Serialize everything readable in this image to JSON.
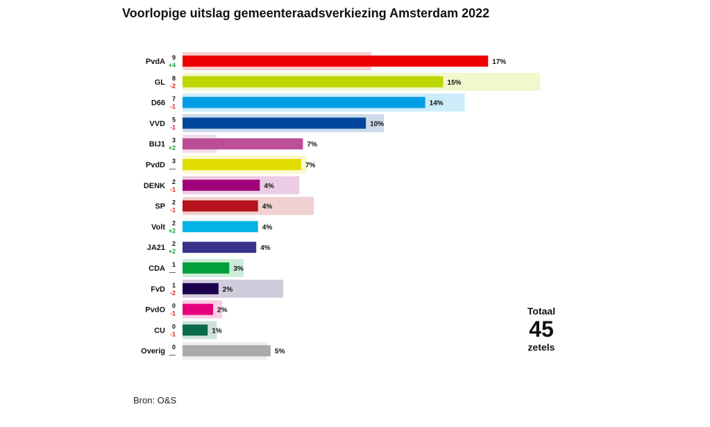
{
  "chart_data": {
    "type": "bar",
    "title": "Voorlopige uitslag gemeenteraadsverkiezing Amsterdam 2022",
    "source": "Bron: O&S",
    "total": {
      "label_top": "Totaal",
      "value": "45",
      "label_bottom": "zetels"
    },
    "xlim": [
      0,
      21
    ],
    "unit": "%",
    "parties": [
      {
        "name": "PvdA",
        "seats": "9",
        "change": "+4",
        "pct": 17.0,
        "pct_label": "17%",
        "prev_pct": 10.5,
        "color": "#ee0000"
      },
      {
        "name": "GL",
        "seats": "8",
        "change": "-2",
        "pct": 14.5,
        "pct_label": "15%",
        "prev_pct": 19.9,
        "color": "#bed600"
      },
      {
        "name": "D66",
        "seats": "7",
        "change": "-1",
        "pct": 13.5,
        "pct_label": "14%",
        "prev_pct": 15.7,
        "color": "#009fe3"
      },
      {
        "name": "VVD",
        "seats": "5",
        "change": "-1",
        "pct": 10.2,
        "pct_label": "10%",
        "prev_pct": 11.2,
        "color": "#00479b"
      },
      {
        "name": "BIJ1",
        "seats": "3",
        "change": "+2",
        "pct": 6.7,
        "pct_label": "7%",
        "prev_pct": 1.9,
        "color": "#bb4e97"
      },
      {
        "name": "PvdD",
        "seats": "3",
        "change": "—",
        "pct": 6.6,
        "pct_label": "7%",
        "prev_pct": 6.9,
        "color": "#e1dc00"
      },
      {
        "name": "DENK",
        "seats": "2",
        "change": "-1",
        "pct": 4.3,
        "pct_label": "4%",
        "prev_pct": 6.5,
        "color": "#a0007a"
      },
      {
        "name": "SP",
        "seats": "2",
        "change": "-1",
        "pct": 4.2,
        "pct_label": "4%",
        "prev_pct": 7.3,
        "color": "#b5121b"
      },
      {
        "name": "Volt",
        "seats": "2",
        "change": "+2",
        "pct": 4.2,
        "pct_label": "4%",
        "prev_pct": 0,
        "color": "#00b2e6"
      },
      {
        "name": "JA21",
        "seats": "2",
        "change": "+2",
        "pct": 4.1,
        "pct_label": "4%",
        "prev_pct": 0,
        "color": "#38328a"
      },
      {
        "name": "CDA",
        "seats": "1",
        "change": "—",
        "pct": 2.6,
        "pct_label": "3%",
        "prev_pct": 3.4,
        "color": "#00a13c"
      },
      {
        "name": "FvD",
        "seats": "1",
        "change": "-2",
        "pct": 2.0,
        "pct_label": "2%",
        "prev_pct": 5.6,
        "color": "#1b004c"
      },
      {
        "name": "PvdO",
        "seats": "0",
        "change": "-1",
        "pct": 1.7,
        "pct_label": "2%",
        "prev_pct": 2.2,
        "color": "#e6007e"
      },
      {
        "name": "CU",
        "seats": "0",
        "change": "-1",
        "pct": 1.4,
        "pct_label": "1%",
        "prev_pct": 1.9,
        "color": "#0a6b4c"
      },
      {
        "name": "Overig",
        "seats": "0",
        "change": "—",
        "pct": 4.9,
        "pct_label": "5%",
        "prev_pct": 4.7,
        "color": "#aaaaaa"
      }
    ],
    "change_colors": {
      "up": "#1a9b3c",
      "down": "#e8161b",
      "none": "#555555"
    }
  }
}
